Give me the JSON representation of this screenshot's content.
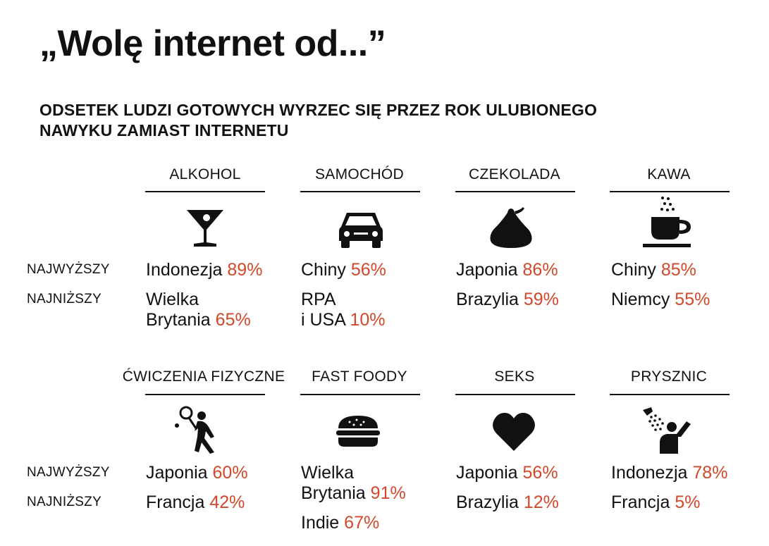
{
  "title": "„Wolę internet od...”",
  "subtitle_line1": "ODSETEK LUDZI GOTOWYCH WYRZEC SIĘ PRZEZ ROK ULUBIONEGO",
  "subtitle_line2": "NAWYKU ZAMIAST INTERNETU",
  "row_labels": {
    "highest": "NAJWYŻSZY",
    "lowest": "NAJNIŻSZY"
  },
  "colors": {
    "text": "#111111",
    "accent": "#d3472a"
  },
  "categories": [
    {
      "name": "ALKOHOL",
      "icon": "cocktail-glass-icon",
      "highest": [
        {
          "name": "Indonezja",
          "pct": "89%"
        }
      ],
      "lowest": [
        {
          "line1": "Wielka",
          "name": "Brytania",
          "pct": "65%"
        }
      ]
    },
    {
      "name": "SAMOCHÓD",
      "icon": "car-icon",
      "highest": [
        {
          "name": "Chiny",
          "pct": "56%"
        }
      ],
      "lowest": [
        {
          "line1": "RPA",
          "name": "i USA",
          "pct": "10%"
        }
      ]
    },
    {
      "name": "CZEKOLADA",
      "icon": "chocolate-kiss-icon",
      "highest": [
        {
          "name": "Japonia",
          "pct": "86%"
        }
      ],
      "lowest": [
        {
          "name": "Brazylia",
          "pct": "59%"
        }
      ]
    },
    {
      "name": "KAWA",
      "icon": "coffee-cup-icon",
      "highest": [
        {
          "name": "Chiny",
          "pct": "85%"
        }
      ],
      "lowest": [
        {
          "name": "Niemcy",
          "pct": "55%"
        }
      ]
    },
    {
      "name": "ĆWICZENIA FIZYCZNE",
      "icon": "tennis-player-icon",
      "highest": [
        {
          "name": "Japonia",
          "pct": "60%"
        }
      ],
      "lowest": [
        {
          "name": "Francja",
          "pct": "42%"
        }
      ]
    },
    {
      "name": "FAST FOODY",
      "icon": "burger-icon",
      "highest": [
        {
          "line1": "Wielka",
          "name": "Brytania",
          "pct": "91%"
        }
      ],
      "lowest": [
        {
          "name": "Indie",
          "pct": "67%"
        }
      ]
    },
    {
      "name": "SEKS",
      "icon": "heart-icon",
      "highest": [
        {
          "name": "Japonia",
          "pct": "56%"
        }
      ],
      "lowest": [
        {
          "name": "Brazylia",
          "pct": "12%"
        }
      ]
    },
    {
      "name": "PRYSZNIC",
      "icon": "shower-icon",
      "highest": [
        {
          "name": "Indonezja",
          "pct": "78%"
        }
      ],
      "lowest": [
        {
          "name": "Francja",
          "pct": "5%"
        }
      ]
    }
  ]
}
